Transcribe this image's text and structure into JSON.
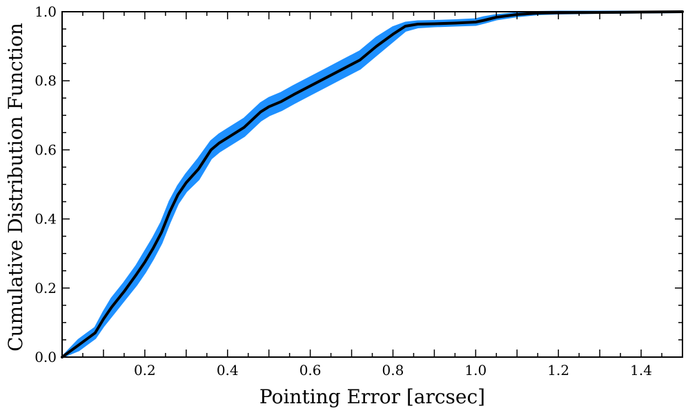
{
  "chart_data": {
    "type": "line",
    "title": "",
    "xlabel": "Pointing Error [arcsec]",
    "ylabel": "Cumulative Distribution Function",
    "xlim": [
      0.0,
      1.5
    ],
    "ylim": [
      0.0,
      1.0
    ],
    "xticks": [
      0.2,
      0.4,
      0.6,
      0.8,
      1.0,
      1.2,
      1.4
    ],
    "xtick_labels": [
      "0.2",
      "0.4",
      "0.6",
      "0.8",
      "1.0",
      "1.2",
      "1.4"
    ],
    "yticks": [
      0.0,
      0.2,
      0.4,
      0.6,
      0.8,
      1.0
    ],
    "ytick_labels": [
      "0.0",
      "0.2",
      "0.4",
      "0.6",
      "0.8",
      "1.0"
    ],
    "grid": false,
    "series": [
      {
        "style": "line",
        "color": "#000000",
        "x": [
          0.0,
          0.04,
          0.08,
          0.1,
          0.12,
          0.15,
          0.18,
          0.2,
          0.22,
          0.24,
          0.26,
          0.28,
          0.3,
          0.33,
          0.36,
          0.38,
          0.4,
          0.44,
          0.48,
          0.5,
          0.53,
          0.56,
          0.6,
          0.64,
          0.68,
          0.72,
          0.76,
          0.8,
          0.83,
          0.86,
          0.9,
          0.95,
          1.0,
          1.02,
          1.05,
          1.1,
          1.15,
          1.2,
          1.3,
          1.4,
          1.5
        ],
        "y": [
          0.0,
          0.035,
          0.07,
          0.11,
          0.145,
          0.19,
          0.24,
          0.275,
          0.315,
          0.36,
          0.42,
          0.47,
          0.505,
          0.545,
          0.6,
          0.62,
          0.635,
          0.665,
          0.71,
          0.725,
          0.74,
          0.76,
          0.785,
          0.81,
          0.835,
          0.86,
          0.9,
          0.935,
          0.958,
          0.964,
          0.965,
          0.967,
          0.97,
          0.975,
          0.984,
          0.992,
          0.996,
          0.997,
          0.998,
          0.999,
          1.0
        ]
      },
      {
        "style": "band",
        "color": "#1e90ff",
        "x": [
          0.0,
          0.04,
          0.08,
          0.1,
          0.12,
          0.15,
          0.18,
          0.2,
          0.22,
          0.24,
          0.26,
          0.28,
          0.3,
          0.33,
          0.36,
          0.38,
          0.4,
          0.44,
          0.48,
          0.5,
          0.53,
          0.56,
          0.6,
          0.64,
          0.68,
          0.72,
          0.76,
          0.8,
          0.83,
          0.86,
          0.9,
          0.95,
          1.0,
          1.02,
          1.05,
          1.1,
          1.15,
          1.2,
          1.3,
          1.4,
          1.5
        ],
        "y_lower": [
          0.0,
          0.02,
          0.055,
          0.09,
          0.12,
          0.165,
          0.21,
          0.245,
          0.285,
          0.33,
          0.39,
          0.445,
          0.48,
          0.515,
          0.575,
          0.595,
          0.61,
          0.64,
          0.685,
          0.7,
          0.715,
          0.735,
          0.76,
          0.785,
          0.81,
          0.835,
          0.875,
          0.915,
          0.945,
          0.955,
          0.958,
          0.96,
          0.962,
          0.968,
          0.978,
          0.987,
          0.993,
          0.995,
          0.997,
          0.998,
          0.999
        ],
        "y_upper": [
          0.0,
          0.05,
          0.085,
          0.13,
          0.17,
          0.215,
          0.265,
          0.305,
          0.345,
          0.39,
          0.45,
          0.495,
          0.53,
          0.575,
          0.625,
          0.645,
          0.66,
          0.69,
          0.735,
          0.75,
          0.765,
          0.785,
          0.81,
          0.835,
          0.86,
          0.885,
          0.925,
          0.955,
          0.968,
          0.972,
          0.973,
          0.975,
          0.978,
          0.984,
          0.99,
          0.996,
          0.999,
          1.0,
          1.0,
          1.0,
          1.0
        ]
      }
    ]
  }
}
